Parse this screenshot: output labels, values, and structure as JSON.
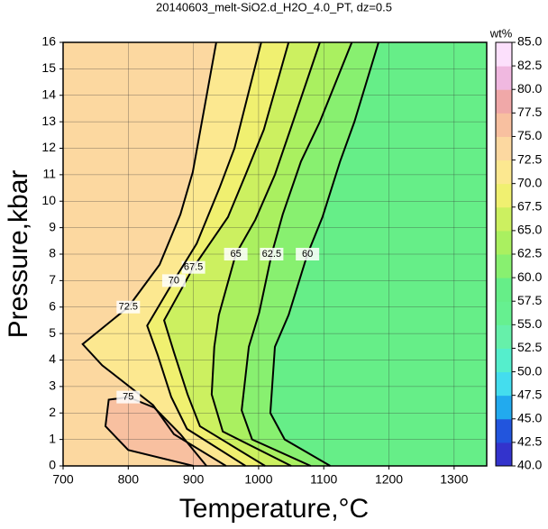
{
  "chart_data": {
    "type": "contour",
    "title": "20140603_melt-SiO2.d_H2O_4.0_PT, dz=0.5",
    "x_label": "Temperature,°C",
    "y_label": "Pressure,kbar",
    "colorbar_label": "wt%",
    "xlim": [
      700,
      1350
    ],
    "xticks": [
      700,
      800,
      900,
      1000,
      1100,
      1200,
      1300
    ],
    "ylim": [
      0,
      16
    ],
    "yticks": [
      0,
      1,
      2,
      3,
      4,
      5,
      6,
      7,
      8,
      9,
      10,
      11,
      12,
      13,
      14,
      15,
      16
    ],
    "grid": true,
    "clim": [
      40,
      85
    ],
    "cticks": [
      {
        "value": 40,
        "label": "40.0"
      },
      42.5,
      {
        "value": 45,
        "label": "45.0"
      },
      47.5,
      {
        "value": 50,
        "label": "50.0"
      },
      52.5,
      {
        "value": 55,
        "label": "55.0"
      },
      57.5,
      {
        "value": 60,
        "label": "60.0"
      },
      62.5,
      {
        "value": 65,
        "label": "65.0"
      },
      67.5,
      {
        "value": 70,
        "label": "70.0"
      },
      72.5,
      {
        "value": 75,
        "label": "75.0"
      },
      77.5,
      {
        "value": 80,
        "label": "80.0"
      },
      82.5,
      {
        "value": 85,
        "label": "85.0"
      }
    ],
    "ccolors": [
      "#4422aa",
      "#3333cc",
      "#2255dd",
      "#22aaee",
      "#44ddee",
      "#55eecc",
      "#66f0aa",
      "#66f090",
      "#66ee88",
      "#88f070",
      "#aaf060",
      "#ccf060",
      "#f0f070",
      "#fce890",
      "#fcd8a0",
      "#f8c0a0",
      "#f0a8a8",
      "#f0b8e0",
      "#fce0fc"
    ],
    "contours": [
      {
        "level": 60,
        "x": [
          1110,
          1040,
          1018,
          1025,
          1046,
          1075,
          1098,
          1125,
          1147,
          1184
        ],
        "y": [
          0,
          1,
          2,
          4.5,
          5.7,
          8,
          9.4,
          11.5,
          13,
          16
        ]
      },
      {
        "level": 62.5,
        "x": [
          1080,
          990,
          974,
          985,
          1001,
          1020,
          1037,
          1065,
          1094,
          1143
        ],
        "y": [
          0,
          1,
          2.1,
          4.5,
          5.8,
          8,
          9.5,
          11.5,
          13,
          16
        ]
      },
      {
        "level": 65,
        "x": [
          1050,
          945,
          928,
          932,
          939,
          965,
          995,
          1025,
          1050,
          1094
        ],
        "y": [
          0,
          1.3,
          2.7,
          4.5,
          5.7,
          8,
          9.3,
          11,
          12.8,
          16
        ]
      },
      {
        "level": 67.5,
        "x": [
          1010,
          910,
          891,
          870,
          855,
          900,
          953,
          980,
          1008,
          1046
        ],
        "y": [
          0,
          1.5,
          2.7,
          4.3,
          5.5,
          7.5,
          9.4,
          11,
          12.7,
          16
        ]
      },
      {
        "level": 70,
        "x": [
          980,
          890,
          866,
          845,
          829,
          870,
          905,
          940,
          963,
          1004
        ],
        "y": [
          0,
          1.4,
          2.6,
          4.2,
          5.3,
          7,
          8.4,
          10.5,
          12,
          16
        ]
      },
      {
        "level": 72.5,
        "x": [
          950,
          870,
          838,
          760,
          730,
          800,
          848,
          880,
          899,
          935
        ],
        "y": [
          0,
          1.2,
          2.3,
          3.8,
          4.6,
          6,
          7.6,
          9.5,
          11.1,
          16
        ]
      },
      {
        "level": 75,
        "x": [
          900,
          800,
          765,
          770,
          800,
          840,
          880,
          920
        ],
        "y": [
          0,
          0.6,
          1.5,
          2.5,
          2.6,
          2.2,
          1.2,
          0
        ]
      }
    ]
  }
}
